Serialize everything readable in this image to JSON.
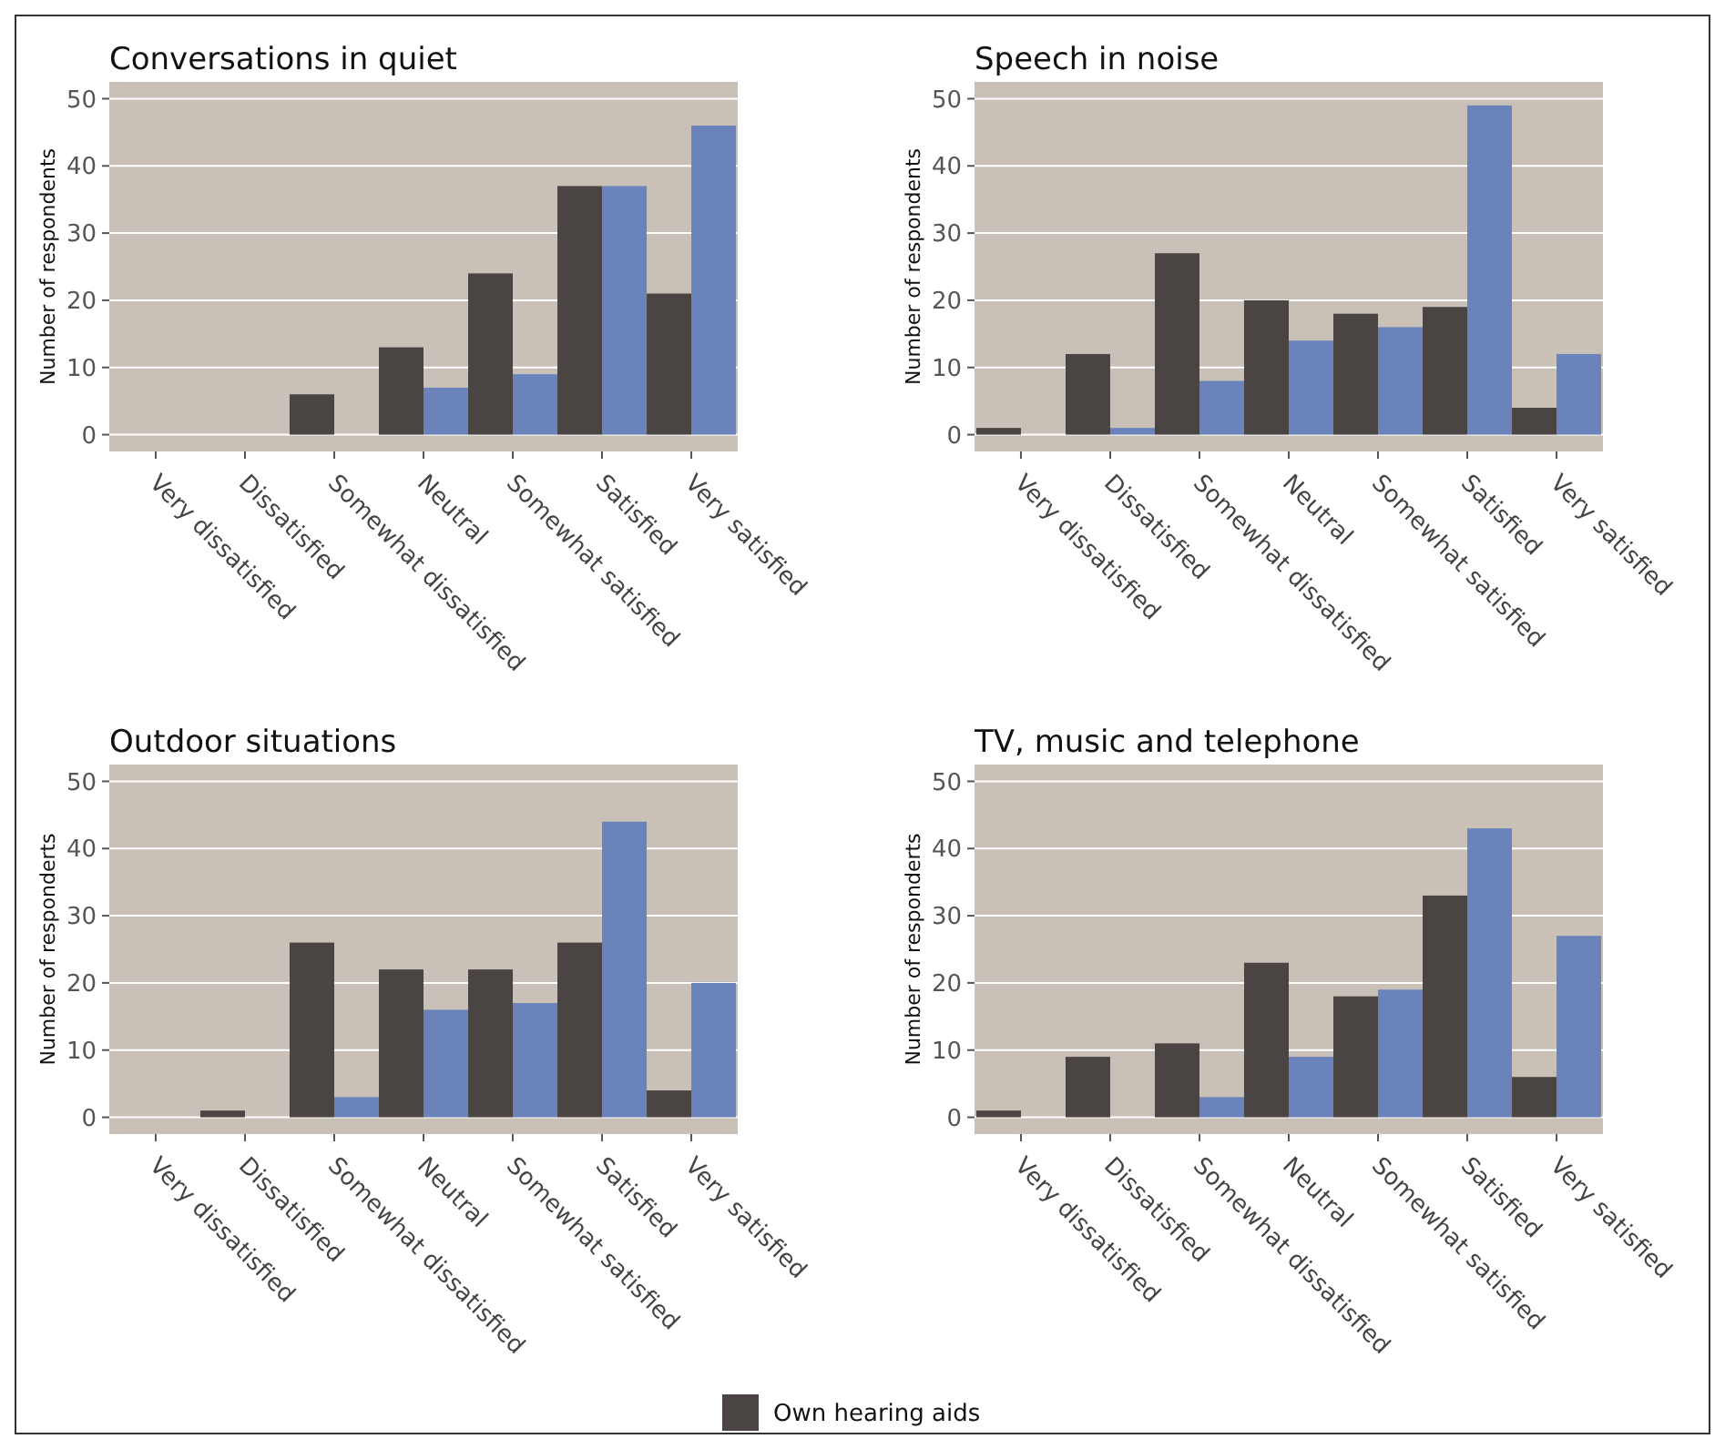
{
  "chart_data": [
    {
      "type": "bar",
      "title": "Conversations in quiet",
      "ylabel": "Number of respondents",
      "categories": [
        "Very dissatisfied",
        "Dissatisfied",
        "Somewhat dissatisfied",
        "Neutral",
        "Somewhat satisfied",
        "Satisfied",
        "Very satisfied"
      ],
      "ylim": [
        -2.5,
        52.5
      ],
      "yticks": [
        0,
        10,
        20,
        30,
        40,
        50
      ],
      "grid": "y",
      "series": [
        {
          "color": "#4a4542",
          "values": [
            0,
            0,
            6,
            13,
            24,
            37,
            21
          ]
        },
        {
          "color": "#6a84bb",
          "values": [
            0,
            0,
            0,
            7,
            9,
            37,
            46
          ]
        }
      ]
    },
    {
      "type": "bar",
      "title": "Speech in noise",
      "ylabel": "Number of respondents",
      "categories": [
        "Very dissatisfied",
        "Dissatisfied",
        "Somewhat dissatisfied",
        "Neutral",
        "Somewhat satisfied",
        "Satisfied",
        "Very satisfied"
      ],
      "ylim": [
        -2.5,
        52.5
      ],
      "yticks": [
        0,
        10,
        20,
        30,
        40,
        50
      ],
      "grid": "y",
      "series": [
        {
          "color": "#4a4542",
          "values": [
            1,
            12,
            27,
            20,
            18,
            19,
            4
          ]
        },
        {
          "color": "#6a84bb",
          "values": [
            0,
            1,
            8,
            14,
            16,
            49,
            12
          ]
        }
      ]
    },
    {
      "type": "bar",
      "title": "Outdoor situations",
      "ylabel": "Number of responderts",
      "categories": [
        "Very dissatisfied",
        "Dissatisfied",
        "Somewhat dissatisfied",
        "Neutral",
        "Somewhat satisfied",
        "Satisfied",
        "Very satisfied"
      ],
      "ylim": [
        -2.5,
        52.5
      ],
      "yticks": [
        0,
        10,
        20,
        30,
        40,
        50
      ],
      "grid": "y",
      "series": [
        {
          "color": "#4a4542",
          "values": [
            0,
            1,
            26,
            22,
            22,
            26,
            4
          ]
        },
        {
          "color": "#6a84bb",
          "values": [
            0,
            0,
            3,
            16,
            17,
            44,
            20
          ]
        }
      ]
    },
    {
      "type": "bar",
      "title": "TV, music and telephone",
      "ylabel": "Number of responderts",
      "categories": [
        "Very dissatisfied",
        "Dissatisfied",
        "Somewhat dissatisfied",
        "Neutral",
        "Somewhat satisfied",
        "Satisfied",
        "Very satisfied"
      ],
      "ylim": [
        -2.5,
        52.5
      ],
      "yticks": [
        0,
        10,
        20,
        30,
        40,
        50
      ],
      "grid": "y",
      "legend": "bottom",
      "series": [
        {
          "name": "Own hearing aids",
          "color": "#4a4542",
          "values": [
            1,
            9,
            11,
            23,
            18,
            33,
            6
          ]
        },
        {
          "color": "#6a84bb",
          "values": [
            0,
            0,
            3,
            9,
            19,
            43,
            27
          ]
        }
      ]
    }
  ]
}
